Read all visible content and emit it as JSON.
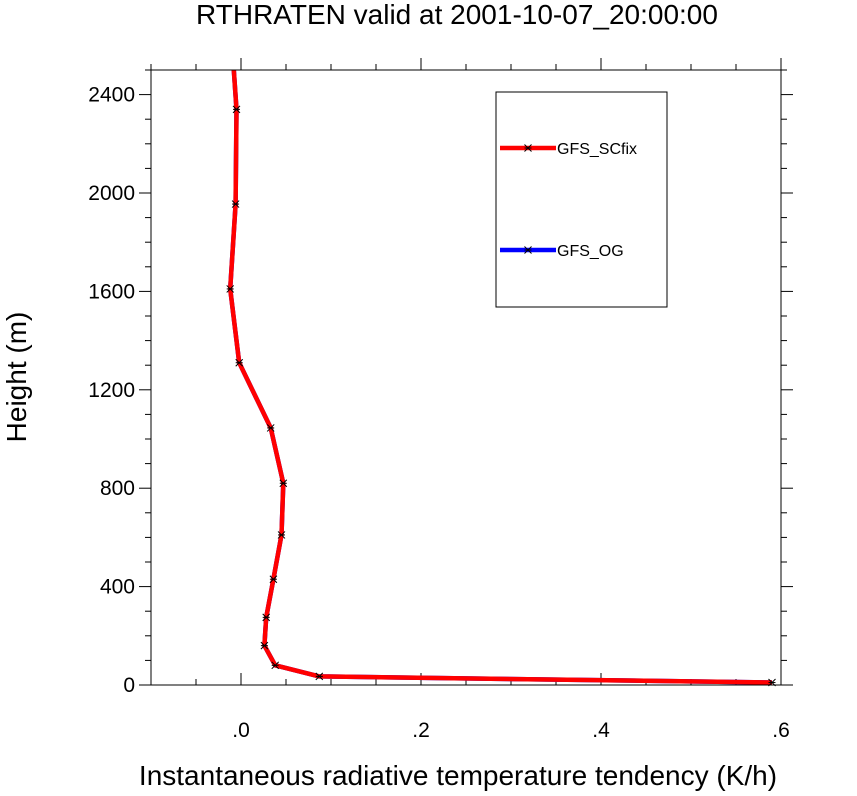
{
  "chart_data": {
    "type": "line",
    "title": "RTHRATEN valid at 2001-10-07_20:00:00",
    "xlabel": "Instantaneous radiative temperature tendency (K/h)",
    "ylabel": "Height (m)",
    "xlim": [
      -0.1,
      0.6
    ],
    "ylim": [
      0,
      2500
    ],
    "x_ticks": [
      0.0,
      0.2,
      0.4,
      0.6
    ],
    "x_tick_labels": [
      ".0",
      ".2",
      ".4",
      ".6"
    ],
    "y_ticks": [
      0,
      400,
      800,
      1200,
      1600,
      2000,
      2400
    ],
    "y_tick_labels": [
      "0",
      "400",
      "800",
      "1200",
      "1600",
      "2000",
      "2400"
    ],
    "legend_position": "top-right",
    "series": [
      {
        "name": "GFS_OG",
        "color": "#0000ff",
        "marker": "asterisk",
        "points": [
          [
            0.59,
            10
          ],
          [
            0.087,
            35
          ],
          [
            0.038,
            80
          ],
          [
            0.026,
            160
          ],
          [
            0.028,
            275
          ],
          [
            0.036,
            430
          ],
          [
            0.045,
            610
          ],
          [
            0.047,
            820
          ],
          [
            0.033,
            1045
          ],
          [
            -0.002,
            1310
          ],
          [
            -0.012,
            1610
          ],
          [
            -0.006,
            1955
          ],
          [
            -0.005,
            2340
          ],
          [
            -0.008,
            2500
          ]
        ]
      },
      {
        "name": "GFS_SCfix",
        "color": "#ff0000",
        "marker": "asterisk",
        "points": [
          [
            0.59,
            10
          ],
          [
            0.087,
            35
          ],
          [
            0.038,
            80
          ],
          [
            0.026,
            160
          ],
          [
            0.028,
            275
          ],
          [
            0.036,
            430
          ],
          [
            0.045,
            610
          ],
          [
            0.047,
            820
          ],
          [
            0.033,
            1045
          ],
          [
            -0.002,
            1310
          ],
          [
            -0.012,
            1610
          ],
          [
            -0.006,
            1955
          ],
          [
            -0.005,
            2340
          ],
          [
            -0.008,
            2500
          ]
        ]
      }
    ]
  }
}
